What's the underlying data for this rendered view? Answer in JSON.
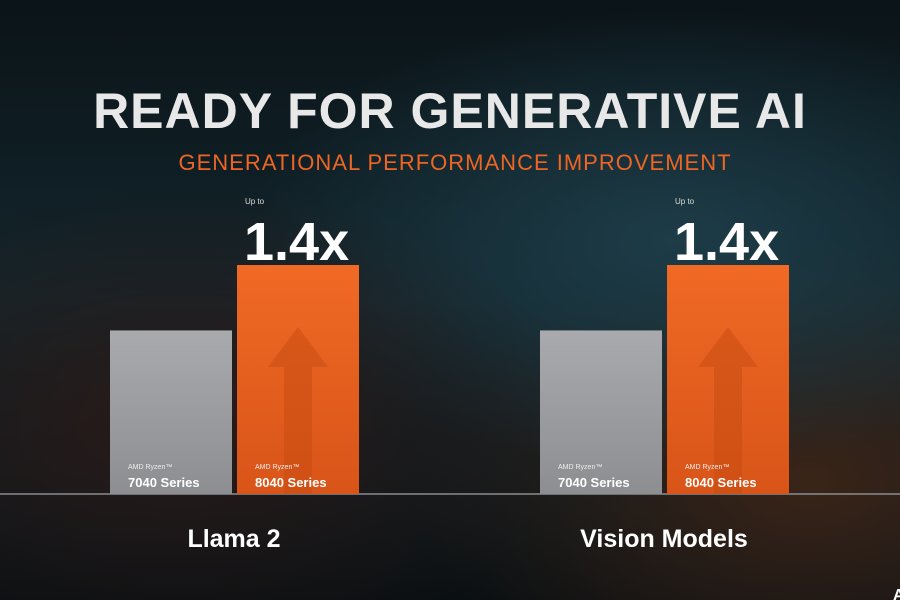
{
  "chart_data": [
    {
      "type": "bar",
      "title": "READY FOR GENERATIVE AI",
      "subtitle": "GENERATIONAL PERFORMANCE IMPROVEMENT",
      "xlabel": "Llama 2",
      "categories": [
        "AMD Ryzen™ 7040 Series",
        "AMD Ryzen™ 8040 Series"
      ],
      "brand": [
        "AMD Ryzen™",
        "AMD Ryzen™"
      ],
      "series_names": [
        "7040 Series",
        "8040 Series"
      ],
      "values": [
        1.0,
        1.4
      ],
      "annotation_prefix": "Up to",
      "annotation": "1.4x",
      "ylim": [
        0,
        1.4
      ],
      "grid": false
    },
    {
      "type": "bar",
      "xlabel": "Vision Models",
      "categories": [
        "AMD Ryzen™ 7040 Series",
        "AMD Ryzen™ 8040 Series"
      ],
      "brand": [
        "AMD Ryzen™",
        "AMD Ryzen™"
      ],
      "series_names": [
        "7040 Series",
        "8040 Series"
      ],
      "values": [
        1.0,
        1.4
      ],
      "annotation_prefix": "Up to",
      "annotation": "1.4x",
      "ylim": [
        0,
        1.4
      ],
      "grid": false
    }
  ],
  "colors": {
    "baseline": "#a7a8ab",
    "improved": "#ee6524",
    "title": "#e8e8e8",
    "subtitle": "#ee6524"
  },
  "logo": "A"
}
